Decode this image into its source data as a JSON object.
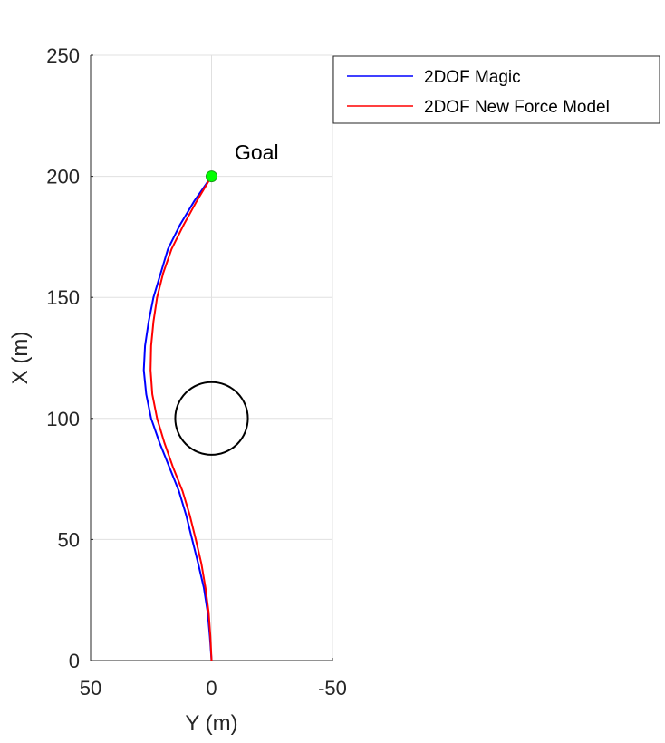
{
  "chart_data": {
    "type": "line",
    "title": "",
    "xlabel": "Y (m)",
    "ylabel": "X (m)",
    "xlim": [
      50,
      -50
    ],
    "ylim": [
      0,
      250
    ],
    "x_ticks": [
      50,
      0,
      -50
    ],
    "y_ticks": [
      0,
      50,
      100,
      150,
      200,
      250
    ],
    "x_tick_labels": [
      "50",
      "0",
      "-50"
    ],
    "y_tick_labels": [
      "0",
      "50",
      "100",
      "150",
      "200",
      "250"
    ],
    "grid": true,
    "legend_position": "top-right",
    "series": [
      {
        "name": "2DOF Magic",
        "color": "#0000ff",
        "points": [
          [
            0,
            0
          ],
          [
            0.7,
            10
          ],
          [
            1.6,
            20
          ],
          [
            3.2,
            30
          ],
          [
            5.5,
            40
          ],
          [
            8,
            50
          ],
          [
            10.5,
            60
          ],
          [
            13.5,
            70
          ],
          [
            17.5,
            80
          ],
          [
            21.5,
            90
          ],
          [
            25,
            100
          ],
          [
            27,
            110
          ],
          [
            28,
            120
          ],
          [
            27.5,
            130
          ],
          [
            26,
            140
          ],
          [
            24,
            150
          ],
          [
            21,
            160
          ],
          [
            18,
            170
          ],
          [
            13,
            180
          ],
          [
            7,
            190
          ],
          [
            0,
            200
          ]
        ]
      },
      {
        "name": "2DOF New Force Model",
        "color": "#ff0000",
        "points": [
          [
            0,
            0
          ],
          [
            0.5,
            10
          ],
          [
            1.2,
            20
          ],
          [
            2.5,
            30
          ],
          [
            4.2,
            40
          ],
          [
            6.5,
            50
          ],
          [
            9,
            60
          ],
          [
            12,
            70
          ],
          [
            16,
            80
          ],
          [
            19.5,
            90
          ],
          [
            22.5,
            100
          ],
          [
            24.5,
            110
          ],
          [
            25.2,
            120
          ],
          [
            25,
            130
          ],
          [
            24,
            140
          ],
          [
            22.5,
            150
          ],
          [
            20,
            160
          ],
          [
            16.5,
            170
          ],
          [
            11.5,
            180
          ],
          [
            6,
            190
          ],
          [
            0,
            200
          ]
        ]
      }
    ],
    "annotations": [
      {
        "type": "circle",
        "center": [
          0,
          100
        ],
        "radius": 15,
        "color": "#000000"
      },
      {
        "type": "marker",
        "point": [
          0,
          200
        ],
        "color": "#00ff00",
        "label": "Goal"
      }
    ]
  }
}
